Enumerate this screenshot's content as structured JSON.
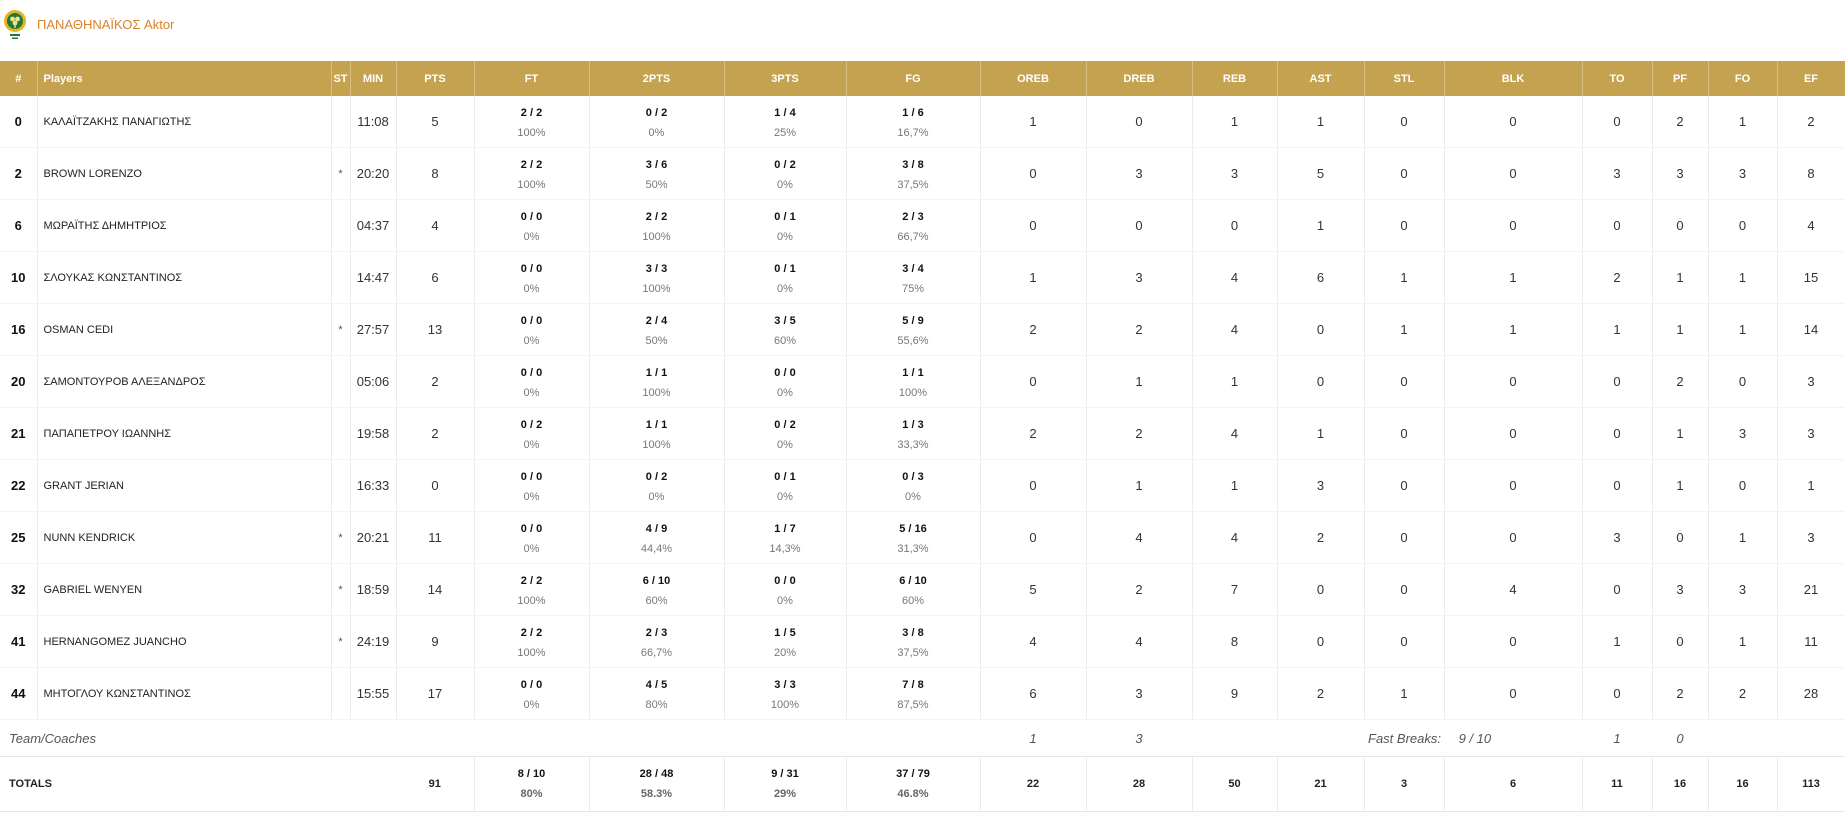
{
  "team": {
    "name": "ΠΑΝΑΘΗΝΑΪΚΟΣ Aktor",
    "logo_icon": "clover-crest-icon",
    "accent_color": "#c5a250",
    "name_color": "#d9822b"
  },
  "headers": {
    "num": "#",
    "players": "Players",
    "st": "ST",
    "min": "MIN",
    "pts": "PTS",
    "ft": "FT",
    "pts2": "2PTS",
    "pts3": "3PTS",
    "fg": "FG",
    "oreb": "OREB",
    "dreb": "DREB",
    "reb": "REB",
    "ast": "AST",
    "stl": "STL",
    "blk": "BLK",
    "to": "TO",
    "pf": "PF",
    "fo": "FO",
    "ef": "EF"
  },
  "players": [
    {
      "num": "0",
      "name": "ΚΑΛΑΪΤΖΑΚΗΣ ΠΑΝΑΓΙΩΤΗΣ",
      "st": "",
      "min": "11:08",
      "pts": "5",
      "ft": "2 / 2",
      "ft_pct": "100%",
      "p2": "0 / 2",
      "p2_pct": "0%",
      "p3": "1 / 4",
      "p3_pct": "25%",
      "fg": "1 / 6",
      "fg_pct": "16,7%",
      "oreb": "1",
      "dreb": "0",
      "reb": "1",
      "ast": "1",
      "stl": "0",
      "blk": "0",
      "to": "0",
      "pf": "2",
      "fo": "1",
      "ef": "2"
    },
    {
      "num": "2",
      "name": "BROWN LORENZO",
      "st": "*",
      "min": "20:20",
      "pts": "8",
      "ft": "2 / 2",
      "ft_pct": "100%",
      "p2": "3 / 6",
      "p2_pct": "50%",
      "p3": "0 / 2",
      "p3_pct": "0%",
      "fg": "3 / 8",
      "fg_pct": "37,5%",
      "oreb": "0",
      "dreb": "3",
      "reb": "3",
      "ast": "5",
      "stl": "0",
      "blk": "0",
      "to": "3",
      "pf": "3",
      "fo": "3",
      "ef": "8"
    },
    {
      "num": "6",
      "name": "ΜΩΡΑΪΤΗΣ ΔΗΜΗΤΡΙΟΣ",
      "st": "",
      "min": "04:37",
      "pts": "4",
      "ft": "0 / 0",
      "ft_pct": "0%",
      "p2": "2 / 2",
      "p2_pct": "100%",
      "p3": "0 / 1",
      "p3_pct": "0%",
      "fg": "2 / 3",
      "fg_pct": "66,7%",
      "oreb": "0",
      "dreb": "0",
      "reb": "0",
      "ast": "1",
      "stl": "0",
      "blk": "0",
      "to": "0",
      "pf": "0",
      "fo": "0",
      "ef": "4"
    },
    {
      "num": "10",
      "name": "ΣΛΟΥΚΑΣ ΚΩΝΣΤΑΝΤΙΝΟΣ",
      "st": "",
      "min": "14:47",
      "pts": "6",
      "ft": "0 / 0",
      "ft_pct": "0%",
      "p2": "3 / 3",
      "p2_pct": "100%",
      "p3": "0 / 1",
      "p3_pct": "0%",
      "fg": "3 / 4",
      "fg_pct": "75%",
      "oreb": "1",
      "dreb": "3",
      "reb": "4",
      "ast": "6",
      "stl": "1",
      "blk": "1",
      "to": "2",
      "pf": "1",
      "fo": "1",
      "ef": "15"
    },
    {
      "num": "16",
      "name": "OSMAN CEDI",
      "st": "*",
      "min": "27:57",
      "pts": "13",
      "ft": "0 / 0",
      "ft_pct": "0%",
      "p2": "2 / 4",
      "p2_pct": "50%",
      "p3": "3 / 5",
      "p3_pct": "60%",
      "fg": "5 / 9",
      "fg_pct": "55,6%",
      "oreb": "2",
      "dreb": "2",
      "reb": "4",
      "ast": "0",
      "stl": "1",
      "blk": "1",
      "to": "1",
      "pf": "1",
      "fo": "1",
      "ef": "14"
    },
    {
      "num": "20",
      "name": "ΣΑΜΟΝΤΟΥΡΟΒ ΑΛΕΞΑΝΔΡΟΣ",
      "st": "",
      "min": "05:06",
      "pts": "2",
      "ft": "0 / 0",
      "ft_pct": "0%",
      "p2": "1 / 1",
      "p2_pct": "100%",
      "p3": "0 / 0",
      "p3_pct": "0%",
      "fg": "1 / 1",
      "fg_pct": "100%",
      "oreb": "0",
      "dreb": "1",
      "reb": "1",
      "ast": "0",
      "stl": "0",
      "blk": "0",
      "to": "0",
      "pf": "2",
      "fo": "0",
      "ef": "3"
    },
    {
      "num": "21",
      "name": "ΠΑΠΑΠΕΤΡΟΥ ΙΩΑΝΝΗΣ",
      "st": "",
      "min": "19:58",
      "pts": "2",
      "ft": "0 / 2",
      "ft_pct": "0%",
      "p2": "1 / 1",
      "p2_pct": "100%",
      "p3": "0 / 2",
      "p3_pct": "0%",
      "fg": "1 / 3",
      "fg_pct": "33,3%",
      "oreb": "2",
      "dreb": "2",
      "reb": "4",
      "ast": "1",
      "stl": "0",
      "blk": "0",
      "to": "0",
      "pf": "1",
      "fo": "3",
      "ef": "3"
    },
    {
      "num": "22",
      "name": "GRANT JERIAN",
      "st": "",
      "min": "16:33",
      "pts": "0",
      "ft": "0 / 0",
      "ft_pct": "0%",
      "p2": "0 / 2",
      "p2_pct": "0%",
      "p3": "0 / 1",
      "p3_pct": "0%",
      "fg": "0 / 3",
      "fg_pct": "0%",
      "oreb": "0",
      "dreb": "1",
      "reb": "1",
      "ast": "3",
      "stl": "0",
      "blk": "0",
      "to": "0",
      "pf": "1",
      "fo": "0",
      "ef": "1"
    },
    {
      "num": "25",
      "name": "NUNN KENDRICK",
      "st": "*",
      "min": "20:21",
      "pts": "11",
      "ft": "0 / 0",
      "ft_pct": "0%",
      "p2": "4 / 9",
      "p2_pct": "44,4%",
      "p3": "1 / 7",
      "p3_pct": "14,3%",
      "fg": "5 / 16",
      "fg_pct": "31,3%",
      "oreb": "0",
      "dreb": "4",
      "reb": "4",
      "ast": "2",
      "stl": "0",
      "blk": "0",
      "to": "3",
      "pf": "0",
      "fo": "1",
      "ef": "3"
    },
    {
      "num": "32",
      "name": "GABRIEL WENYEN",
      "st": "*",
      "min": "18:59",
      "pts": "14",
      "ft": "2 / 2",
      "ft_pct": "100%",
      "p2": "6 / 10",
      "p2_pct": "60%",
      "p3": "0 / 0",
      "p3_pct": "0%",
      "fg": "6 / 10",
      "fg_pct": "60%",
      "oreb": "5",
      "dreb": "2",
      "reb": "7",
      "ast": "0",
      "stl": "0",
      "blk": "4",
      "to": "0",
      "pf": "3",
      "fo": "3",
      "ef": "21"
    },
    {
      "num": "41",
      "name": "HERNANGOMEZ JUANCHO",
      "st": "*",
      "min": "24:19",
      "pts": "9",
      "ft": "2 / 2",
      "ft_pct": "100%",
      "p2": "2 / 3",
      "p2_pct": "66,7%",
      "p3": "1 / 5",
      "p3_pct": "20%",
      "fg": "3 / 8",
      "fg_pct": "37,5%",
      "oreb": "4",
      "dreb": "4",
      "reb": "8",
      "ast": "0",
      "stl": "0",
      "blk": "0",
      "to": "1",
      "pf": "0",
      "fo": "1",
      "ef": "11"
    },
    {
      "num": "44",
      "name": "ΜΗΤΟΓΛΟΥ ΚΩΝΣΤΑΝΤΙΝΟΣ",
      "st": "",
      "min": "15:55",
      "pts": "17",
      "ft": "0 / 0",
      "ft_pct": "0%",
      "p2": "4 / 5",
      "p2_pct": "80%",
      "p3": "3 / 3",
      "p3_pct": "100%",
      "fg": "7 / 8",
      "fg_pct": "87,5%",
      "oreb": "6",
      "dreb": "3",
      "reb": "9",
      "ast": "2",
      "stl": "1",
      "blk": "0",
      "to": "0",
      "pf": "2",
      "fo": "2",
      "ef": "28"
    }
  ],
  "team_coaches": {
    "label": "Team/Coaches",
    "oreb": "1",
    "dreb": "3",
    "fast_breaks_label": "Fast Breaks:",
    "fast_breaks_value": "9 / 10",
    "to": "1",
    "pf": "0"
  },
  "totals": {
    "label": "TOTALS",
    "pts": "91",
    "ft": "8 / 10",
    "ft_pct": "80%",
    "p2": "28 / 48",
    "p2_pct": "58.3%",
    "p3": "9 / 31",
    "p3_pct": "29%",
    "fg": "37 / 79",
    "fg_pct": "46.8%",
    "oreb": "22",
    "dreb": "28",
    "reb": "50",
    "ast": "21",
    "stl": "3",
    "blk": "6",
    "to": "11",
    "pf": "16",
    "fo": "16",
    "ef": "113"
  }
}
